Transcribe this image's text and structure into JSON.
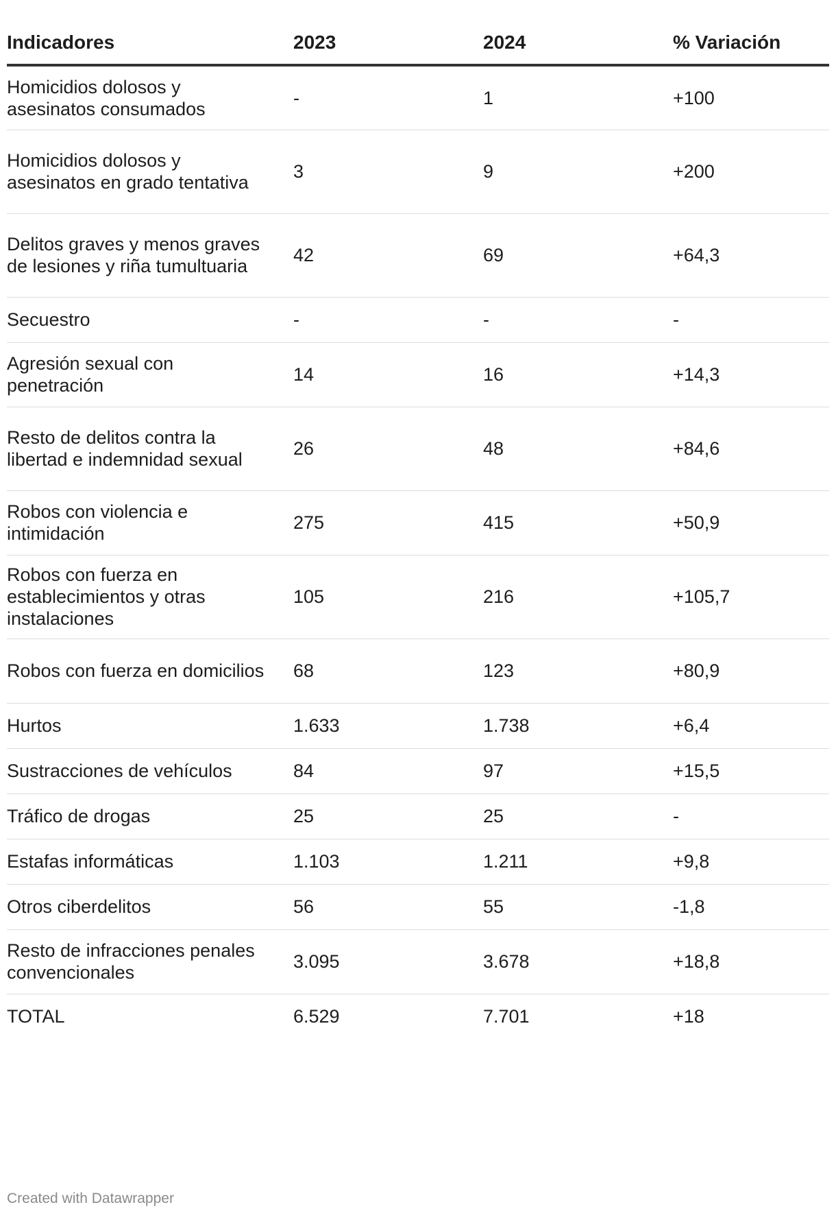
{
  "table": {
    "headers": [
      "Indicadores",
      "2023",
      "2024",
      "% Variación"
    ],
    "rows": [
      {
        "indicator": "Homicidios dolosos y asesinatos consumados",
        "y2023": "-",
        "y2024": "1",
        "variation": "+100"
      },
      {
        "indicator": "Homicidios dolosos y asesinatos en grado tentativa",
        "y2023": "3",
        "y2024": "9",
        "variation": "+200"
      },
      {
        "indicator": "Delitos graves y menos graves de lesiones y riña tumultuaria",
        "y2023": "42",
        "y2024": "69",
        "variation": "+64,3"
      },
      {
        "indicator": "Secuestro",
        "y2023": "-",
        "y2024": "-",
        "variation": "-"
      },
      {
        "indicator": "Agresión sexual con penetración",
        "y2023": "14",
        "y2024": "16",
        "variation": "+14,3"
      },
      {
        "indicator": "Resto de delitos contra la libertad e indemnidad sexual",
        "y2023": "26",
        "y2024": "48",
        "variation": "+84,6"
      },
      {
        "indicator": "Robos con violencia e intimidación",
        "y2023": "275",
        "y2024": "415",
        "variation": "+50,9"
      },
      {
        "indicator": "Robos con fuerza en establecimientos y otras instalaciones",
        "y2023": "105",
        "y2024": "216",
        "variation": "+105,7"
      },
      {
        "indicator": "Robos con fuerza en domicilios",
        "y2023": "68",
        "y2024": "123",
        "variation": "+80,9"
      },
      {
        "indicator": "Hurtos",
        "y2023": "1.633",
        "y2024": "1.738",
        "variation": "+6,4"
      },
      {
        "indicator": "Sustracciones de vehículos",
        "y2023": "84",
        "y2024": "97",
        "variation": "+15,5"
      },
      {
        "indicator": "Tráfico de drogas",
        "y2023": "25",
        "y2024": "25",
        "variation": "-"
      },
      {
        "indicator": "Estafas informáticas",
        "y2023": "1.103",
        "y2024": "1.211",
        "variation": "+9,8"
      },
      {
        "indicator": "Otros ciberdelitos",
        "y2023": "56",
        "y2024": "55",
        "variation": "-1,8"
      },
      {
        "indicator": "Resto de infracciones penales convencionales",
        "y2023": "3.095",
        "y2024": "3.678",
        "variation": "+18,8"
      },
      {
        "indicator": "TOTAL",
        "y2023": "6.529",
        "y2024": "7.701",
        "variation": "+18"
      }
    ]
  },
  "footer": {
    "credit": "Created with Datawrapper"
  },
  "colors": {
    "text": "#1d1d1d",
    "header_rule": "#333333",
    "row_divider": "#dcdcdc",
    "footer_text": "#8a8a8a"
  }
}
